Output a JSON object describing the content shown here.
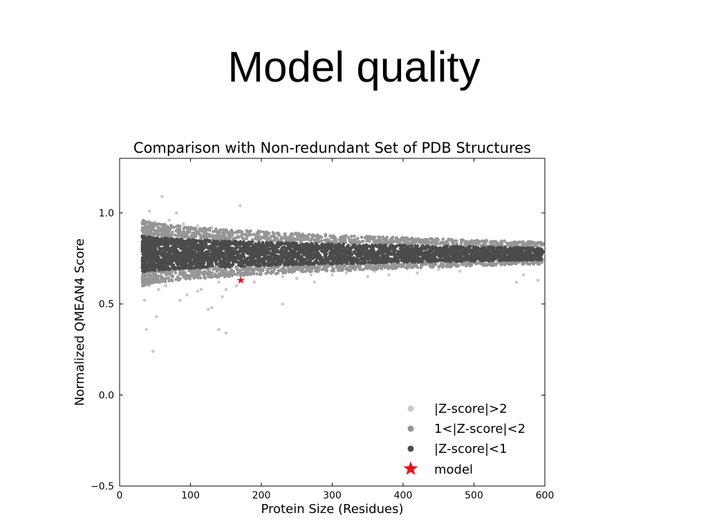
{
  "slide": {
    "title": "Model quality"
  },
  "colors": {
    "z_gt2": "#c8c8c8",
    "z_1to2": "#969696",
    "z_lt1": "#4b4b4b",
    "model": "#e8141c"
  },
  "chart_data": {
    "type": "scatter",
    "title": "Comparison with Non-redundant Set of PDB Structures",
    "xlabel": "Protein Size (Residues)",
    "ylabel": "Normalized QMEAN4 Score",
    "xlim": [
      0,
      600
    ],
    "ylim": [
      -0.5,
      1.3
    ],
    "xticks": [
      0,
      100,
      200,
      300,
      400,
      500,
      600
    ],
    "yticks": [
      -0.5,
      0.0,
      0.5,
      1.0
    ],
    "ytick_labels": [
      "−0.5",
      "0.0",
      "0.5",
      "1.0"
    ],
    "grid": false,
    "legend_position": "lower-right",
    "series": [
      {
        "name": "|Z-score|>2",
        "color": "#c8c8c8",
        "points": [
          [
            38,
            0.36
          ],
          [
            47,
            0.24
          ],
          [
            52,
            0.43
          ],
          [
            35,
            0.52
          ],
          [
            60,
            1.09
          ],
          [
            42,
            1.01
          ],
          [
            80,
            1.0
          ],
          [
            170,
            1.04
          ],
          [
            150,
            0.34
          ],
          [
            140,
            0.36
          ],
          [
            125,
            0.47
          ],
          [
            130,
            0.48
          ],
          [
            95,
            0.55
          ],
          [
            85,
            0.52
          ],
          [
            110,
            0.57
          ],
          [
            65,
            0.6
          ],
          [
            75,
            0.63
          ],
          [
            100,
            0.65
          ],
          [
            120,
            0.64
          ],
          [
            140,
            0.62
          ],
          [
            150,
            0.58
          ],
          [
            160,
            0.66
          ],
          [
            180,
            0.66
          ],
          [
            200,
            0.67
          ],
          [
            230,
            0.5
          ],
          [
            250,
            0.64
          ],
          [
            270,
            0.66
          ],
          [
            300,
            0.66
          ],
          [
            320,
            0.67
          ],
          [
            350,
            0.65
          ],
          [
            380,
            0.66
          ],
          [
            420,
            0.67
          ],
          [
            450,
            0.69
          ],
          [
            480,
            0.68
          ],
          [
            560,
            0.62
          ],
          [
            590,
            0.63
          ],
          [
            570,
            0.66
          ],
          [
            50,
            0.95
          ],
          [
            70,
            0.96
          ],
          [
            90,
            0.94
          ],
          [
            110,
            0.93
          ],
          [
            130,
            0.92
          ],
          [
            150,
            0.91
          ],
          [
            180,
            0.9
          ],
          [
            210,
            0.89
          ],
          [
            250,
            0.88
          ],
          [
            300,
            0.87
          ],
          [
            350,
            0.87
          ],
          [
            400,
            0.86
          ],
          [
            450,
            0.85
          ],
          [
            520,
            0.84
          ],
          [
            580,
            0.83
          ],
          [
            42,
            0.6
          ],
          [
            55,
            0.58
          ],
          [
            230,
            0.65
          ],
          [
            270,
            0.69
          ],
          [
            410,
            0.7
          ],
          [
            310,
            0.7
          ],
          [
            360,
            0.68
          ],
          [
            190,
            0.62
          ],
          [
            165,
            0.6
          ],
          [
            145,
            0.54
          ],
          [
            115,
            0.58
          ],
          [
            275,
            0.62
          ]
        ]
      },
      {
        "name": "1<|Z-score|<2",
        "color": "#969696",
        "band": {
          "center": 0.78,
          "half_width_start": 0.19,
          "half_width_end": 0.06,
          "inner_start": 0.11,
          "inner_end": 0.03
        },
        "n_points": 1900
      },
      {
        "name": "|Z-score|<1",
        "color": "#4b4b4b",
        "band": {
          "center": 0.775,
          "half_width_start": 0.11,
          "half_width_end": 0.035
        },
        "n_points": 3600
      },
      {
        "name": "model",
        "color": "#e8141c",
        "marker": "star",
        "points": [
          [
            171,
            0.63
          ]
        ]
      }
    ]
  }
}
